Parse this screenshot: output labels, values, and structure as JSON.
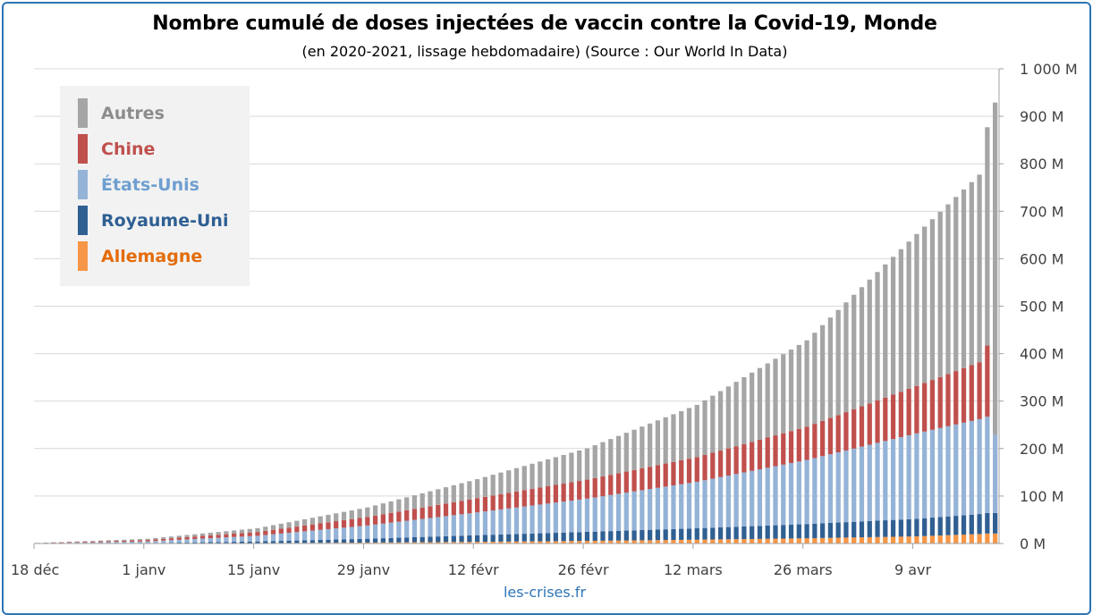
{
  "page": {
    "source_label": "les-crises.fr"
  },
  "chart_data": {
    "type": "bar",
    "stacked": true,
    "title": "Nombre cumulé de doses injectées de vaccin contre la Covid-19, Monde",
    "subtitle": "(en 2020-2021, lissage hebdomadaire) (Source : Our World In Data)",
    "x_start": "2020-12-18",
    "x_end": "2021-04-19",
    "x_tick_labels": [
      "18 déc",
      "1 janv",
      "15 janv",
      "29 janv",
      "12 févr",
      "26 févr",
      "12 mars",
      "26 mars",
      "9 avr"
    ],
    "x_tick_dates": [
      "2020-12-18",
      "2021-01-01",
      "2021-01-15",
      "2021-01-29",
      "2021-02-12",
      "2021-02-26",
      "2021-03-12",
      "2021-03-26",
      "2021-04-09"
    ],
    "y_axis_position": "right",
    "ylim": [
      0,
      1000
    ],
    "y_unit": "M",
    "y_tick_labels": [
      "0 M",
      "100 M",
      "200 M",
      "300 M",
      "400 M",
      "500 M",
      "600 M",
      "700 M",
      "800 M",
      "900 M",
      "1 000 M"
    ],
    "grid": true,
    "legend_position": "top-left",
    "colors": {
      "autres": "#a5a5a5",
      "chine": "#c0504d",
      "etats_unis": "#95b3d7",
      "royaume_uni": "#305f92",
      "allemagne": "#f79646"
    },
    "legend": [
      {
        "label": "Autres",
        "color": "#a5a5a5",
        "text_color": "#8c8c8c"
      },
      {
        "label": "Chine",
        "color": "#c0504d",
        "text_color": "#c0504d"
      },
      {
        "label": "États-Unis",
        "color": "#95b3d7",
        "text_color": "#6f9fd0"
      },
      {
        "label": "Royaume-Uni",
        "color": "#305f92",
        "text_color": "#2f5f93"
      },
      {
        "label": "Allemagne",
        "color": "#f79646",
        "text_color": "#e46c0a"
      }
    ],
    "series_order_bottom_to_top": [
      "Allemagne",
      "Royaume-Uni",
      "États-Unis",
      "Chine",
      "Autres"
    ],
    "anchors": {
      "dates": [
        "2020-12-18",
        "2021-01-01",
        "2021-01-15",
        "2021-01-29",
        "2021-02-12",
        "2021-02-26",
        "2021-03-12",
        "2021-03-26",
        "2021-04-09",
        "2021-04-17",
        "2021-04-18",
        "2021-04-19"
      ],
      "Allemagne": [
        0,
        0.1,
        0.8,
        2,
        3.5,
        5.5,
        8,
        11,
        15,
        20,
        21,
        21
      ],
      "Royaume-Uni": [
        0,
        0.8,
        3.5,
        8,
        14,
        19,
        24,
        30,
        37,
        42,
        43,
        43
      ],
      "États-Unis": [
        0.3,
        3.5,
        12,
        28,
        48,
        70,
        98,
        135,
        180,
        200,
        203,
        165
      ],
      "Chine": [
        0.5,
        3,
        8,
        18,
        30,
        40,
        52,
        70,
        100,
        120,
        150,
        0
      ],
      "Autres": [
        0.5,
        2.5,
        8,
        20,
        40,
        66,
        110,
        182,
        320,
        395,
        460,
        700
      ]
    }
  }
}
